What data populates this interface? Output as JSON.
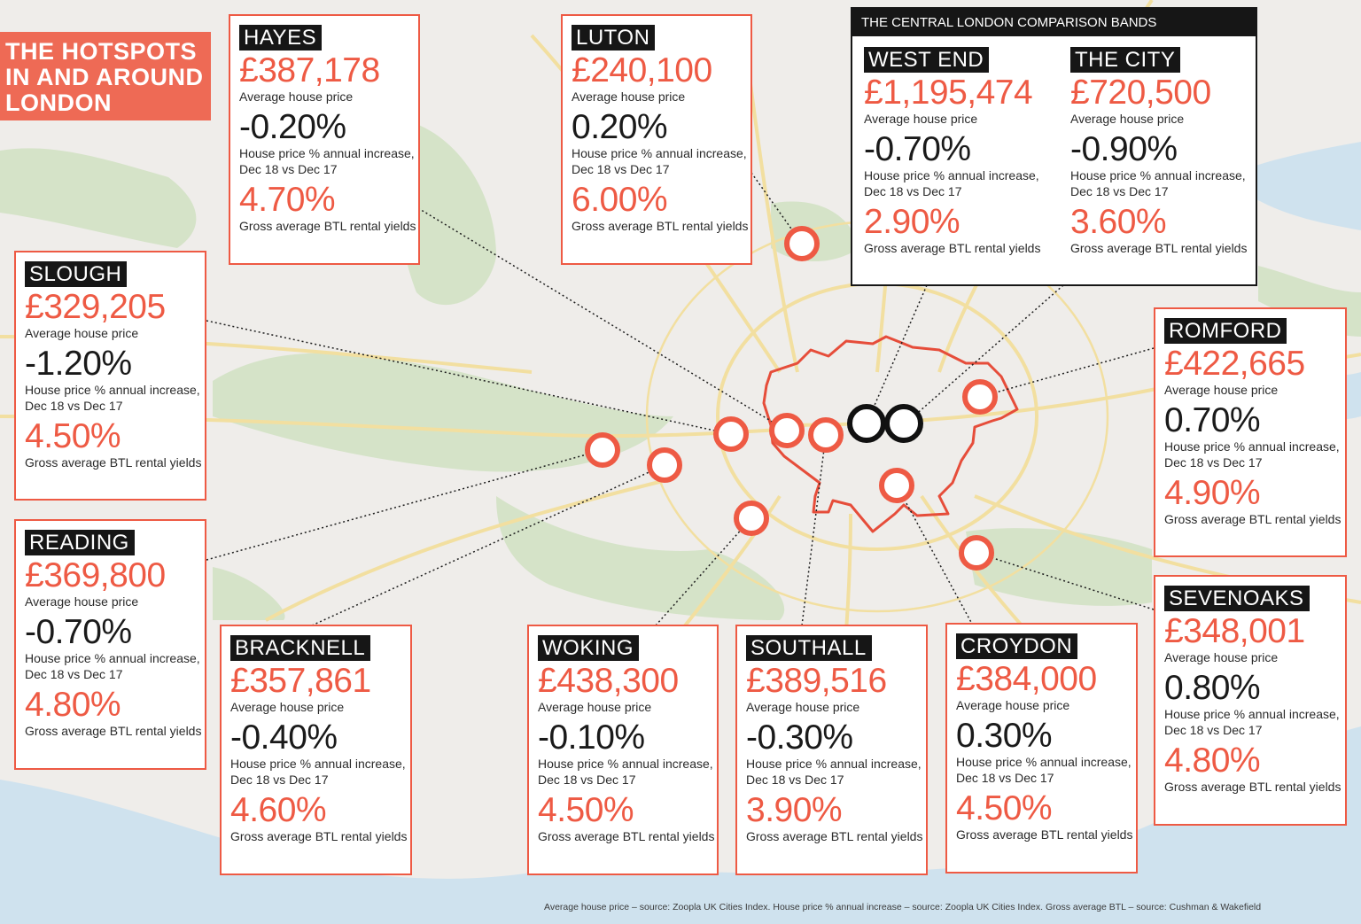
{
  "title": [
    "THE HOTSPOTS",
    "IN AND AROUND",
    "LONDON"
  ],
  "labels": {
    "price": "Average house price",
    "change_line1": "House price % annual increase,",
    "change_line2": "Dec 18 vs Dec 17",
    "yield": "Gross average BTL rental yields"
  },
  "colors": {
    "accent": "#ee5a44",
    "dark": "#161616",
    "water": "#cfe2ee",
    "green": "#d5e3c8",
    "land": "#efedea",
    "roads": "#f2dfa0"
  },
  "hotspots": {
    "hayes": {
      "name": "HAYES",
      "price": "£387,178",
      "change": "-0.20%",
      "yield": "4.70%"
    },
    "luton": {
      "name": "LUTON",
      "price": "£240,100",
      "change": "0.20%",
      "yield": "6.00%"
    },
    "slough": {
      "name": "SLOUGH",
      "price": "£329,205",
      "change": "-1.20%",
      "yield": "4.50%"
    },
    "reading": {
      "name": "READING",
      "price": "£369,800",
      "change": "-0.70%",
      "yield": "4.80%"
    },
    "bracknell": {
      "name": "BRACKNELL",
      "price": "£357,861",
      "change": "-0.40%",
      "yield": "4.60%"
    },
    "woking": {
      "name": "WOKING",
      "price": "£438,300",
      "change": "-0.10%",
      "yield": "4.50%"
    },
    "southall": {
      "name": "SOUTHALL",
      "price": "£389,516",
      "change": "-0.30%",
      "yield": "3.90%"
    },
    "croydon": {
      "name": "CROYDON",
      "price": "£384,000",
      "change": "0.30%",
      "yield": "4.50%"
    },
    "romford": {
      "name": "ROMFORD",
      "price": "£422,665",
      "change": "0.70%",
      "yield": "4.90%"
    },
    "sevenoaks": {
      "name": "SEVENOAKS",
      "price": "£348,001",
      "change": "0.80%",
      "yield": "4.80%"
    }
  },
  "central": {
    "heading": "THE CENTRAL LONDON COMPARISON BANDS",
    "west_end": {
      "name": "WEST END",
      "price": "£1,195,474",
      "change": "-0.70%",
      "yield": "2.90%"
    },
    "the_city": {
      "name": "THE CITY",
      "price": "£720,500",
      "change": "-0.90%",
      "yield": "3.60%"
    }
  },
  "footnote": "Average house price – source: Zoopla UK Cities Index. House price % annual increase – source: Zoopla UK Cities Index. Gross average BTL – source: Cushman & Wakefield"
}
